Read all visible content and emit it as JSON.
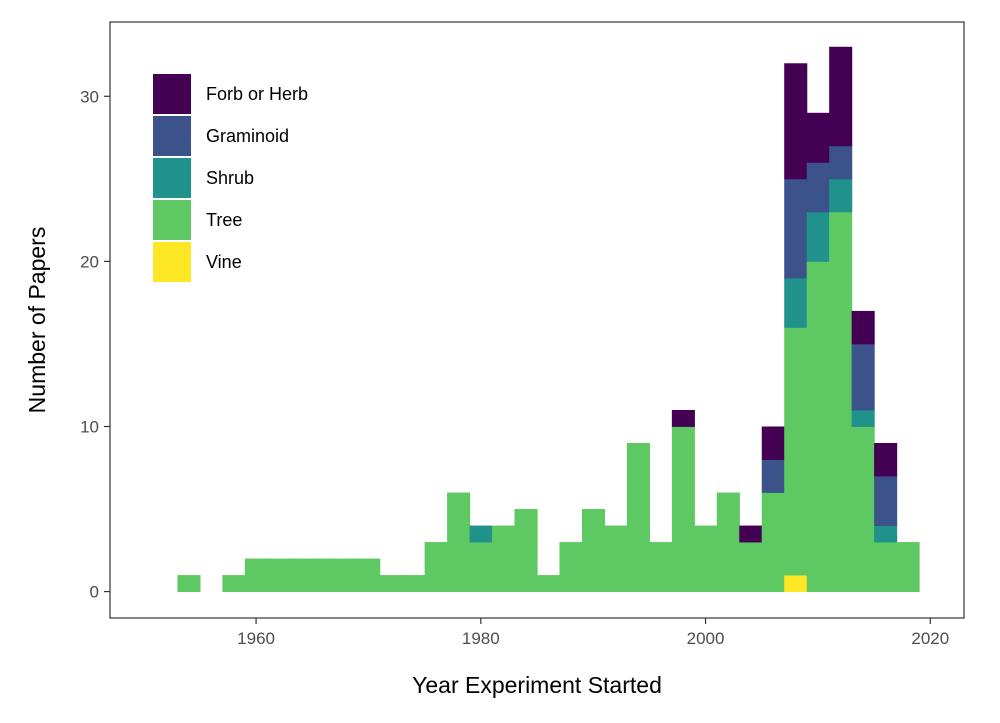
{
  "chart_data": {
    "type": "bar",
    "stacked": true,
    "title": "",
    "xlabel": "Year Experiment Started",
    "ylabel": "Number of Papers",
    "xlim": [
      1947,
      2023
    ],
    "ylim": [
      -1.6,
      34.5
    ],
    "bin_width": 2,
    "x_ticks": [
      {
        "value": 1960,
        "label": "1960"
      },
      {
        "value": 1980,
        "label": "1980"
      },
      {
        "value": 2000,
        "label": "2000"
      },
      {
        "value": 2020,
        "label": "2020"
      }
    ],
    "y_ticks": [
      {
        "value": 0,
        "label": "0"
      },
      {
        "value": 10,
        "label": "10"
      },
      {
        "value": 20,
        "label": "20"
      },
      {
        "value": 30,
        "label": "30"
      }
    ],
    "grid": false,
    "legend_position": "top-left",
    "bin_starts": [
      1953,
      1955,
      1957,
      1959,
      1961,
      1963,
      1965,
      1967,
      1969,
      1971,
      1973,
      1975,
      1977,
      1979,
      1981,
      1983,
      1985,
      1987,
      1989,
      1991,
      1993,
      1995,
      1997,
      1999,
      2001,
      2003,
      2005,
      2007,
      2009,
      2011,
      2013,
      2015,
      2017
    ],
    "series": [
      {
        "name": "Vine",
        "color": "#FDE725",
        "values": [
          0,
          0,
          0,
          0,
          0,
          0,
          0,
          0,
          0,
          0,
          0,
          0,
          0,
          0,
          0,
          0,
          0,
          0,
          0,
          0,
          0,
          0,
          0,
          0,
          0,
          0,
          0,
          1,
          0,
          0,
          0,
          0,
          0
        ]
      },
      {
        "name": "Tree",
        "color": "#5EC962",
        "values": [
          1,
          0,
          1,
          2,
          2,
          2,
          2,
          2,
          2,
          1,
          1,
          3,
          6,
          3,
          4,
          5,
          1,
          3,
          5,
          4,
          9,
          3,
          10,
          4,
          6,
          3,
          6,
          15,
          20,
          23,
          10,
          3,
          3
        ]
      },
      {
        "name": "Shrub",
        "color": "#21918C",
        "values": [
          0,
          0,
          0,
          0,
          0,
          0,
          0,
          0,
          0,
          0,
          0,
          0,
          0,
          1,
          0,
          0,
          0,
          0,
          0,
          0,
          0,
          0,
          0,
          0,
          0,
          0,
          0,
          3,
          3,
          2,
          1,
          1,
          0
        ]
      },
      {
        "name": "Graminoid",
        "color": "#3B528B",
        "values": [
          0,
          0,
          0,
          0,
          0,
          0,
          0,
          0,
          0,
          0,
          0,
          0,
          0,
          0,
          0,
          0,
          0,
          0,
          0,
          0,
          0,
          0,
          0,
          0,
          0,
          0,
          2,
          6,
          3,
          2,
          4,
          3,
          0
        ]
      },
      {
        "name": "Forb or Herb",
        "color": "#440154",
        "values": [
          0,
          0,
          0,
          0,
          0,
          0,
          0,
          0,
          0,
          0,
          0,
          0,
          0,
          0,
          0,
          0,
          0,
          0,
          0,
          0,
          0,
          0,
          1,
          0,
          0,
          1,
          2,
          7,
          3,
          6,
          2,
          2,
          0
        ]
      }
    ],
    "legend_order": [
      "Forb or Herb",
      "Graminoid",
      "Shrub",
      "Tree",
      "Vine"
    ]
  }
}
